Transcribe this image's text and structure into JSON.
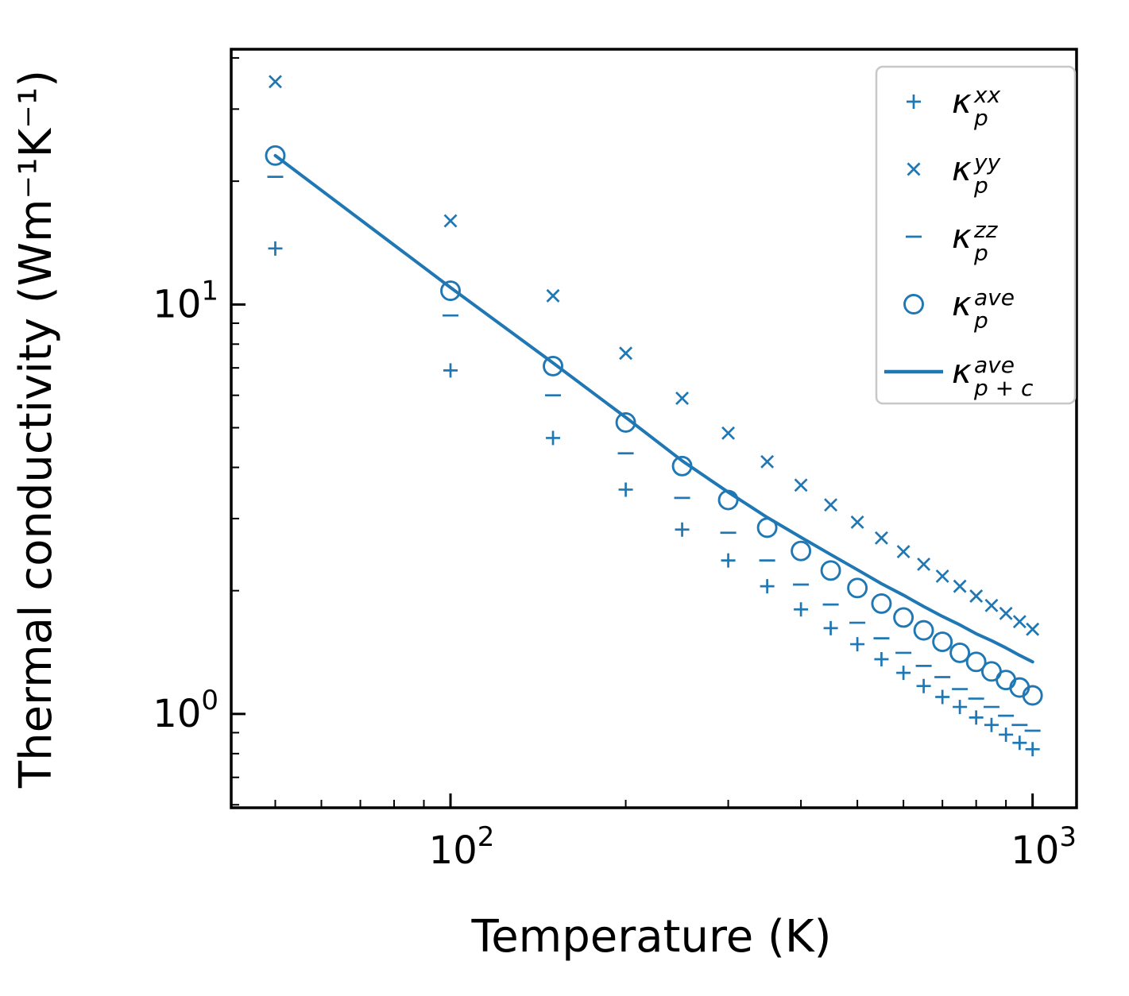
{
  "chart_data": {
    "type": "scatter",
    "title": "",
    "xlabel": "Temperature (K)",
    "ylabel": "Thermal conductivity (Wm⁻¹K⁻¹)",
    "xscale": "log",
    "yscale": "log",
    "xlim": [
      42,
      1190
    ],
    "ylim": [
      0.59,
      42
    ],
    "grid": false,
    "color": "#1f77b4",
    "legend_position": "upper right",
    "x_ticks": [
      {
        "value": 100,
        "label": "10²",
        "base": "10",
        "exp": "2"
      },
      {
        "value": 1000,
        "label": "10³",
        "base": "10",
        "exp": "3"
      }
    ],
    "y_ticks": [
      {
        "value": 1,
        "label": "10⁰",
        "base": "10",
        "exp": "0"
      },
      {
        "value": 10,
        "label": "10¹",
        "base": "10",
        "exp": "1"
      }
    ],
    "temperatures": [
      50,
      100,
      150,
      200,
      250,
      300,
      350,
      400,
      450,
      500,
      550,
      600,
      650,
      700,
      750,
      800,
      850,
      900,
      950,
      1000
    ],
    "series": [
      {
        "name": "kappa-p-xx",
        "marker": "plus",
        "legend": {
          "base": "κ",
          "sup": "xx",
          "sub": "p"
        },
        "values": [
          13.7,
          6.9,
          4.72,
          3.53,
          2.82,
          2.37,
          2.05,
          1.8,
          1.62,
          1.48,
          1.36,
          1.26,
          1.17,
          1.1,
          1.04,
          0.98,
          0.94,
          0.89,
          0.85,
          0.82
        ]
      },
      {
        "name": "kappa-p-yy",
        "marker": "cross",
        "legend": {
          "base": "κ",
          "sup": "yy",
          "sub": "p"
        },
        "values": [
          35.0,
          16.0,
          10.5,
          7.6,
          5.9,
          4.85,
          4.13,
          3.62,
          3.24,
          2.94,
          2.69,
          2.49,
          2.32,
          2.17,
          2.05,
          1.94,
          1.84,
          1.76,
          1.68,
          1.61
        ]
      },
      {
        "name": "kappa-p-zz",
        "marker": "dash",
        "legend": {
          "base": "κ",
          "sup": "zz",
          "sub": "p"
        },
        "values": [
          20.5,
          9.4,
          6.0,
          4.33,
          3.37,
          2.77,
          2.37,
          2.07,
          1.85,
          1.67,
          1.53,
          1.41,
          1.31,
          1.23,
          1.15,
          1.09,
          1.04,
          0.99,
          0.94,
          0.91
        ]
      },
      {
        "name": "kappa-p-ave",
        "marker": "circle",
        "legend": {
          "base": "κ",
          "sup": "ave",
          "sub": "p"
        },
        "values": [
          23.1,
          10.8,
          7.07,
          5.15,
          4.03,
          3.33,
          2.85,
          2.5,
          2.24,
          2.03,
          1.86,
          1.72,
          1.6,
          1.5,
          1.41,
          1.34,
          1.27,
          1.21,
          1.16,
          1.11
        ]
      },
      {
        "name": "kappa-p-plus-c-ave",
        "marker": "line",
        "legend": {
          "base": "κ",
          "sup": "ave",
          "sub": "p + c"
        },
        "values": [
          23.1,
          11.0,
          7.2,
          5.3,
          4.15,
          3.48,
          3.02,
          2.7,
          2.45,
          2.25,
          2.08,
          1.95,
          1.83,
          1.73,
          1.65,
          1.57,
          1.51,
          1.45,
          1.39,
          1.34
        ]
      }
    ]
  }
}
